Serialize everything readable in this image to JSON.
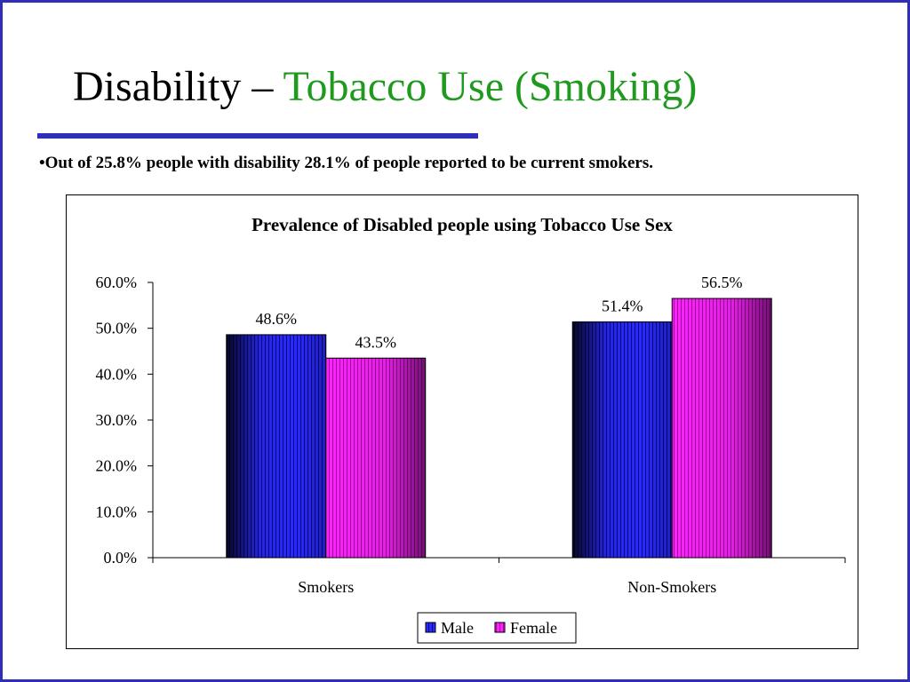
{
  "slide": {
    "title_main": "Disability – ",
    "title_accent": "Tobacco Use (Smoking)",
    "bullet": "•Out of 25.8% people with disability 28.1% of people reported to be current smokers."
  },
  "colors": {
    "frame": "#2e2eb8",
    "title_accent": "#1f9a1f",
    "male": "#2a2aff",
    "female": "#ff22ff"
  },
  "chart_data": {
    "type": "bar",
    "title": "Prevalence of Disabled people using Tobacco Use Sex",
    "xlabel": "",
    "ylabel": "",
    "categories": [
      "Smokers",
      "Non-Smokers"
    ],
    "series": [
      {
        "name": "Male",
        "values": [
          48.6,
          51.4
        ],
        "labels": [
          "48.6%",
          "51.4%"
        ],
        "color": "#2a2aff"
      },
      {
        "name": "Female",
        "values": [
          43.5,
          56.5
        ],
        "labels": [
          "43.5%",
          "56.5%"
        ],
        "color": "#ff22ff"
      }
    ],
    "ylim": [
      0,
      60
    ],
    "yticks": [
      "0.0%",
      "10.0%",
      "20.0%",
      "30.0%",
      "40.0%",
      "50.0%",
      "60.0%"
    ],
    "legend_position": "bottom",
    "grid": false
  }
}
